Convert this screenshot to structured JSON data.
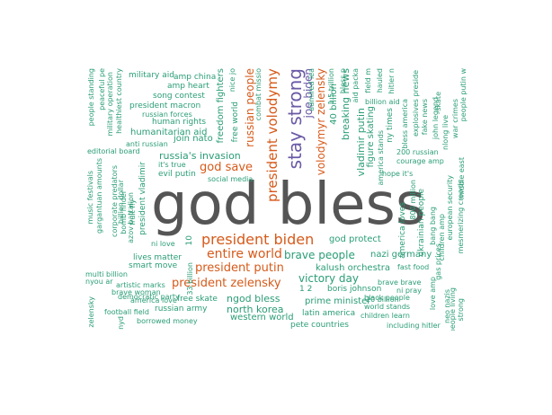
{
  "palette": {
    "green": "#2a9d76",
    "orange": "#d65a1a",
    "purple": "#6a5aa6",
    "grey": "#555555"
  },
  "words": [
    {
      "t": "god bless",
      "c": "grey"
    },
    {
      "t": "stay strong",
      "c": "purple"
    },
    {
      "t": "president volodymyr",
      "c": "orange"
    },
    {
      "t": "president biden",
      "c": "orange"
    },
    {
      "t": "president zelensky",
      "c": "orange"
    },
    {
      "t": "president putin",
      "c": "orange"
    },
    {
      "t": "entire world",
      "c": "orange"
    },
    {
      "t": "god save",
      "c": "orange"
    },
    {
      "t": "russian people",
      "c": "orange"
    },
    {
      "t": "volodymyr zelensky",
      "c": "orange"
    },
    {
      "t": "joe biden",
      "c": "purple"
    },
    {
      "t": "russia's invasion",
      "c": "green"
    },
    {
      "t": "brave people",
      "c": "green"
    },
    {
      "t": "victory day",
      "c": "green"
    },
    {
      "t": "god protect",
      "c": "green"
    },
    {
      "t": "nazi germany",
      "c": "green"
    },
    {
      "t": "kalush orchestra",
      "c": "green"
    },
    {
      "t": "prime minister",
      "c": "green"
    },
    {
      "t": "boris johnson",
      "c": "green"
    },
    {
      "t": "ngod bless",
      "c": "green"
    },
    {
      "t": "north korea",
      "c": "green"
    },
    {
      "t": "western world",
      "c": "green"
    },
    {
      "t": "latin america",
      "c": "green"
    },
    {
      "t": "join nato",
      "c": "green"
    },
    {
      "t": "social media",
      "c": "green"
    },
    {
      "t": "freedom fighters",
      "c": "green"
    },
    {
      "t": "breaking news",
      "c": "green"
    },
    {
      "t": "vladimir putin",
      "c": "green"
    },
    {
      "t": "figure skating",
      "c": "green"
    },
    {
      "t": "1 2",
      "c": "green"
    },
    {
      "t": "20 billion",
      "c": "green"
    },
    {
      "t": "black people",
      "c": "green"
    },
    {
      "t": "world stands",
      "c": "green"
    },
    {
      "t": "children learn",
      "c": "green"
    },
    {
      "t": "including hitler",
      "c": "green"
    },
    {
      "t": "fast food",
      "c": "green"
    },
    {
      "t": "brave brave",
      "c": "green"
    },
    {
      "t": "ni pray",
      "c": "green"
    },
    {
      "t": "america loves",
      "c": "green"
    },
    {
      "t": "ukrainian people",
      "c": "green"
    },
    {
      "t": "800 million",
      "c": "green"
    },
    {
      "t": "gas prices",
      "c": "green"
    },
    {
      "t": "bang bang",
      "c": "green"
    },
    {
      "t": "european security",
      "c": "green"
    },
    {
      "t": "children amp",
      "c": "green"
    },
    {
      "t": "mesmerizing crowds",
      "c": "green"
    },
    {
      "t": "middle east",
      "c": "green"
    },
    {
      "t": "love amp",
      "c": "green"
    },
    {
      "t": "neo nazis",
      "c": "green"
    },
    {
      "t": "people living",
      "c": "green"
    },
    {
      "t": "strong",
      "c": "green"
    },
    {
      "t": "200 russian",
      "c": "green"
    },
    {
      "t": "courage amp",
      "c": "green"
    },
    {
      "t": "hope it's",
      "c": "green"
    },
    {
      "t": "america stands",
      "c": "green"
    },
    {
      "t": "ny times",
      "c": "green"
    },
    {
      "t": "bless america",
      "c": "green"
    },
    {
      "t": "explosives preside",
      "c": "green"
    },
    {
      "t": "fake news",
      "c": "green"
    },
    {
      "t": "john legend",
      "c": "green"
    },
    {
      "t": "war crimes",
      "c": "green"
    },
    {
      "t": "people putin w",
      "c": "green"
    },
    {
      "t": "nlong live",
      "c": "green"
    },
    {
      "t": "skate",
      "c": "green"
    },
    {
      "t": "billion aid",
      "c": "green"
    },
    {
      "t": "hitler n",
      "c": "green"
    },
    {
      "t": "aid packa",
      "c": "green"
    },
    {
      "t": "field m",
      "c": "green"
    },
    {
      "t": "hauled",
      "c": "green"
    },
    {
      "t": "bless p",
      "c": "green"
    },
    {
      "t": "admired lea",
      "c": "green"
    },
    {
      "t": "1.5 trillion",
      "c": "green"
    },
    {
      "t": "40 billion",
      "c": "green"
    },
    {
      "t": "combat missio",
      "c": "green"
    },
    {
      "t": "free world",
      "c": "green"
    },
    {
      "t": "nice jo",
      "c": "green"
    },
    {
      "t": "military aid",
      "c": "green"
    },
    {
      "t": "amp china",
      "c": "green"
    },
    {
      "t": "amp heart",
      "c": "green"
    },
    {
      "t": "song contest",
      "c": "green"
    },
    {
      "t": "president macron",
      "c": "green"
    },
    {
      "t": "russian forces",
      "c": "green"
    },
    {
      "t": "human rights",
      "c": "green"
    },
    {
      "t": "humanitarian aid",
      "c": "green"
    },
    {
      "t": "anti russian",
      "c": "green"
    },
    {
      "t": "editorial board",
      "c": "green"
    },
    {
      "t": "it's true",
      "c": "green"
    },
    {
      "t": "evil putin",
      "c": "green"
    },
    {
      "t": "people standing",
      "c": "green"
    },
    {
      "t": "peaceful pe",
      "c": "green"
    },
    {
      "t": "military operation",
      "c": "green"
    },
    {
      "t": "healthiest country",
      "c": "green"
    },
    {
      "t": "music festivals",
      "c": "green"
    },
    {
      "t": "gargantuan amounts",
      "c": "green"
    },
    {
      "t": "corporate predators",
      "c": "green"
    },
    {
      "t": "bomb finder",
      "c": "green"
    },
    {
      "t": "billion dollar",
      "c": "green"
    },
    {
      "t": "fruit fly",
      "c": "green"
    },
    {
      "t": "azov battalion",
      "c": "green"
    },
    {
      "t": "president vladimir",
      "c": "green"
    },
    {
      "t": "ni love",
      "c": "green"
    },
    {
      "t": "10",
      "c": "green"
    },
    {
      "t": "lives matter",
      "c": "green"
    },
    {
      "t": "smart move",
      "c": "green"
    },
    {
      "t": "33 billion",
      "c": "green"
    },
    {
      "t": "multi billion",
      "c": "green"
    },
    {
      "t": "nyou ar",
      "c": "green"
    },
    {
      "t": "artistic marks",
      "c": "green"
    },
    {
      "t": "brave woman",
      "c": "green"
    },
    {
      "t": "america love",
      "c": "green"
    },
    {
      "t": "democratic party",
      "c": "green"
    },
    {
      "t": "free skate",
      "c": "green"
    },
    {
      "t": "russian army",
      "c": "green"
    },
    {
      "t": "football field",
      "c": "green"
    },
    {
      "t": "borrowed money",
      "c": "green"
    },
    {
      "t": "zelensky",
      "c": "green"
    },
    {
      "t": "nyd",
      "c": "green"
    },
    {
      "t": "pete countries",
      "c": "green"
    }
  ]
}
